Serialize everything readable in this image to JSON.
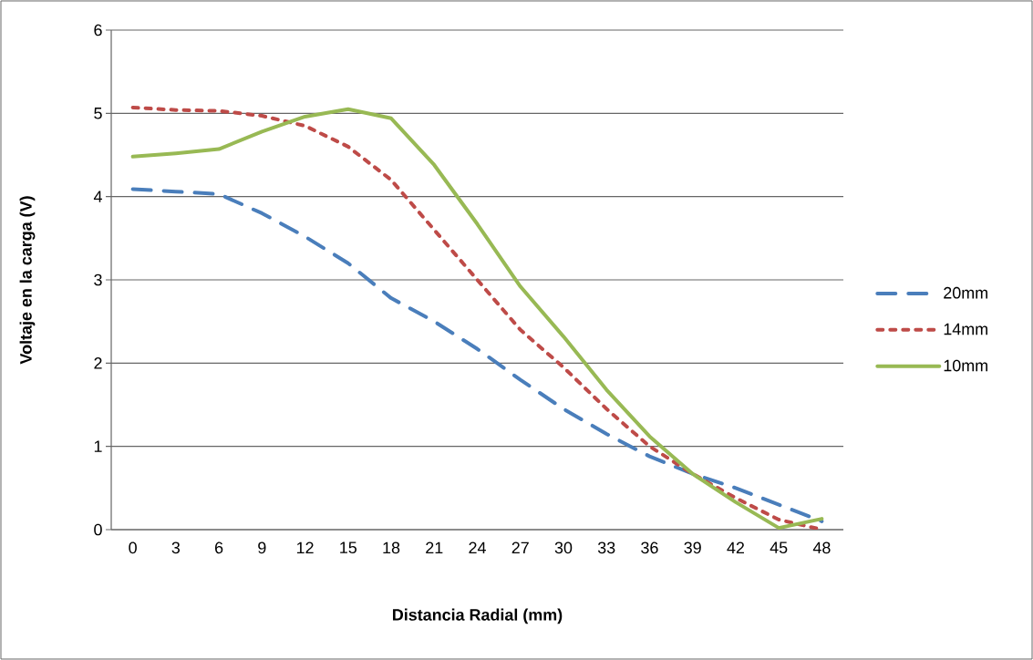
{
  "chart_data": {
    "type": "line",
    "xlabel": "Distancia Radial (mm)",
    "ylabel": "Voltaje en la carga (V)",
    "categories": [
      "0",
      "3",
      "6",
      "9",
      "12",
      "15",
      "18",
      "21",
      "24",
      "27",
      "30",
      "33",
      "36",
      "39",
      "42",
      "45",
      "48"
    ],
    "series": [
      {
        "name": "20mm",
        "color": "#4a7ebb",
        "line_style": "dashed",
        "values": [
          4.09,
          4.06,
          4.03,
          3.8,
          3.52,
          3.2,
          2.78,
          2.5,
          2.17,
          1.8,
          1.45,
          1.15,
          0.88,
          0.67,
          0.5,
          0.3,
          0.1
        ]
      },
      {
        "name": "14mm",
        "color": "#be4b48",
        "line_style": "dotted",
        "values": [
          5.07,
          5.04,
          5.03,
          4.97,
          4.85,
          4.6,
          4.2,
          3.6,
          3.0,
          2.4,
          1.95,
          1.45,
          1.0,
          0.67,
          0.38,
          0.12,
          0.0
        ]
      },
      {
        "name": "10mm",
        "color": "#98b954",
        "line_style": "solid",
        "values": [
          4.48,
          4.52,
          4.57,
          4.78,
          4.96,
          5.05,
          4.94,
          4.38,
          3.67,
          2.92,
          2.32,
          1.68,
          1.12,
          0.67,
          0.33,
          0.02,
          0.13
        ]
      }
    ],
    "ylim": [
      0,
      6
    ],
    "yticks": [
      0,
      1,
      2,
      3,
      4,
      5,
      6
    ],
    "grid": "y",
    "legend": "right"
  }
}
